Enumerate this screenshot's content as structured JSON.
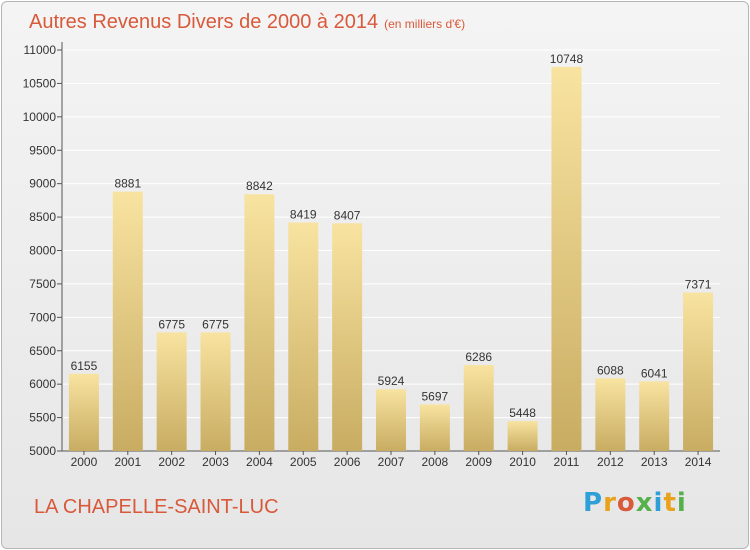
{
  "title": "Autres Revenus Divers de 2000 à 2014",
  "subtitle": "(en milliers d'€)",
  "city": "LA CHAPELLE-SAINT-LUC",
  "logo": {
    "text": "Proxiti",
    "colors": [
      "#2f9fd8",
      "#e8a21c",
      "#d9593b",
      "#56b04c",
      "#2f9fd8",
      "#e8a21c",
      "#56b04c"
    ]
  },
  "colors": {
    "title": "#d9593b",
    "bar_light": "#f8e3a0",
    "bar_dark": "#c8ac62",
    "grid": "#ffffff"
  },
  "chart_data": {
    "type": "bar",
    "categories": [
      "2000",
      "2001",
      "2002",
      "2003",
      "2004",
      "2005",
      "2006",
      "2007",
      "2008",
      "2009",
      "2010",
      "2011",
      "2012",
      "2013",
      "2014"
    ],
    "values": [
      6155,
      8881,
      6775,
      6775,
      8842,
      8419,
      8407,
      5924,
      5697,
      6286,
      5448,
      10748,
      6088,
      6041,
      7371
    ],
    "ylim": [
      5000,
      11000
    ],
    "yticks": [
      5000,
      5500,
      6000,
      6500,
      7000,
      7500,
      8000,
      8500,
      9000,
      9500,
      10000,
      10500,
      11000
    ],
    "grid": true,
    "xlabel": "",
    "ylabel": ""
  }
}
